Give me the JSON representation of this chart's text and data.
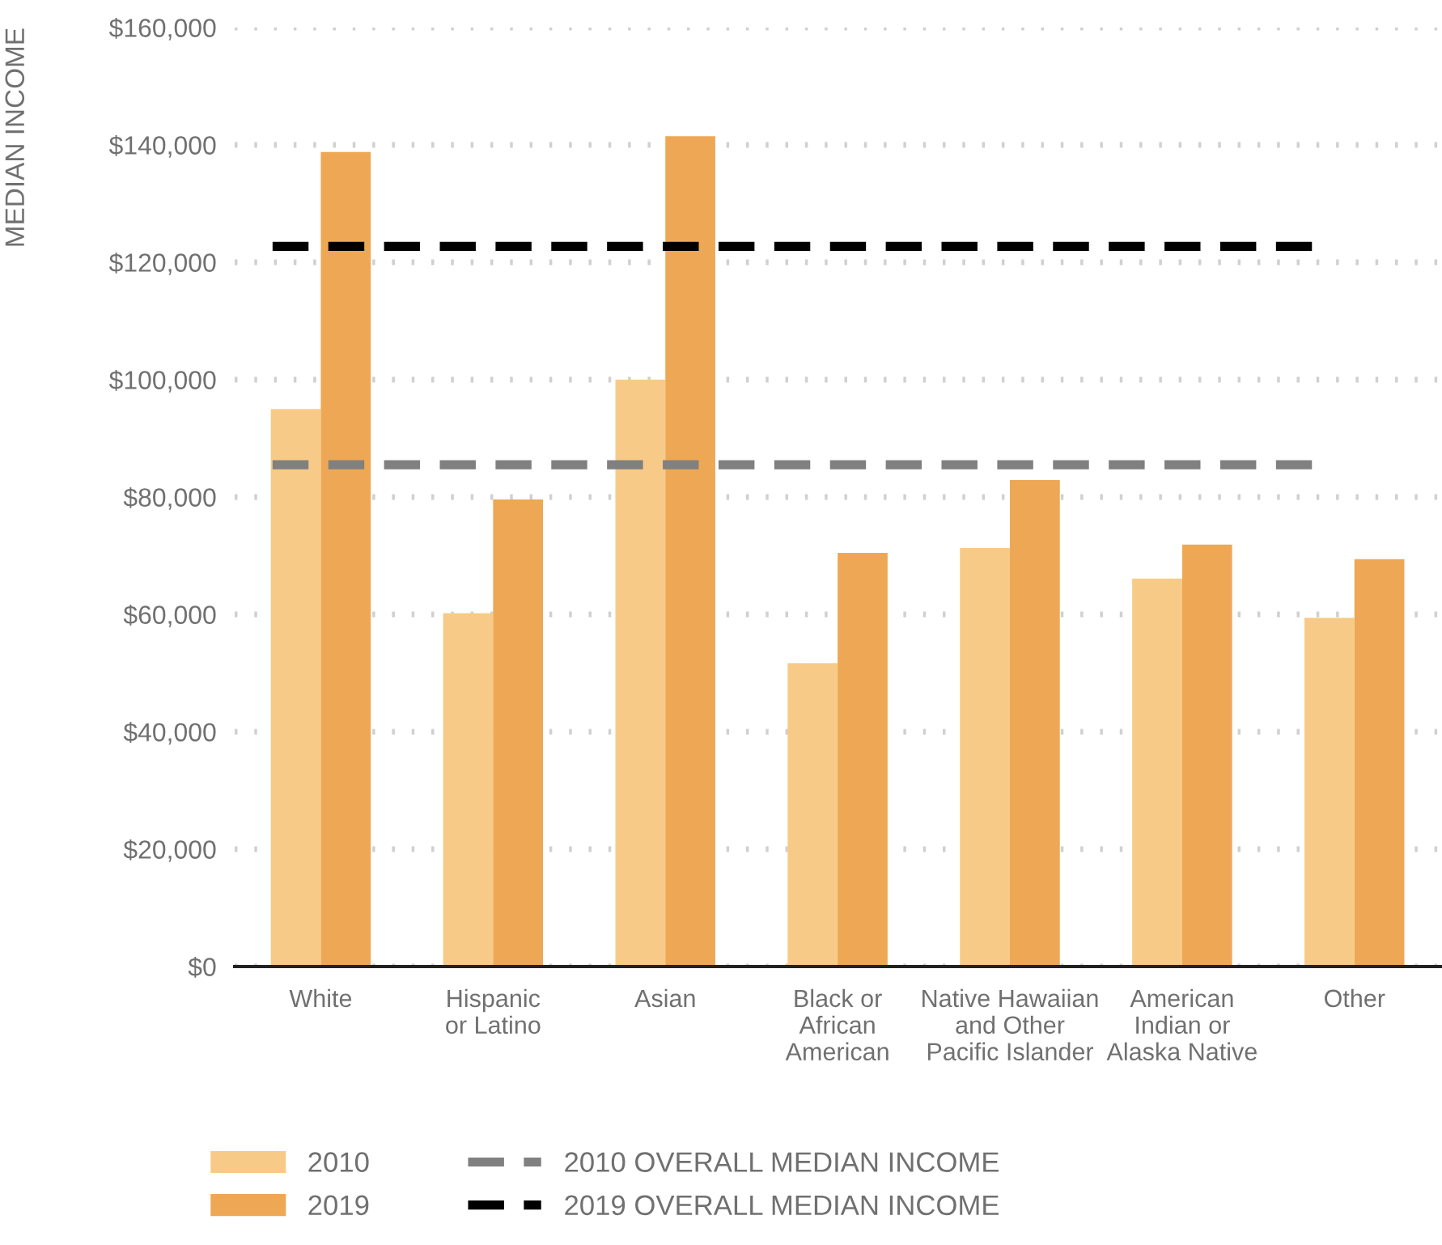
{
  "chart_data": {
    "type": "bar",
    "ylabel": "MEDIAN INCOME",
    "categories": [
      "White",
      "Hispanic\nor Latino",
      "Asian",
      "Black or\nAfrican\nAmerican",
      "Native Hawaiian\nand Other\nPacific Islander",
      "American\nIndian or\nAlaska Native",
      "Other"
    ],
    "series": [
      {
        "name": "2010",
        "color": "#f7cb87",
        "values": [
          95000,
          60200,
          100000,
          51700,
          71300,
          66100,
          59400
        ]
      },
      {
        "name": "2019",
        "color": "#eea855",
        "values": [
          138800,
          79600,
          141500,
          70500,
          82900,
          71900,
          69400
        ]
      }
    ],
    "ylim": [
      0,
      160000
    ],
    "yticks": [
      {
        "value": 0,
        "label": "$0"
      },
      {
        "value": 20000,
        "label": "$20,000"
      },
      {
        "value": 40000,
        "label": "$40,000"
      },
      {
        "value": 60000,
        "label": "$60,000"
      },
      {
        "value": 80000,
        "label": "$80,000"
      },
      {
        "value": 100000,
        "label": "$100,000"
      },
      {
        "value": 120000,
        "label": "$120,000"
      },
      {
        "value": 140000,
        "label": "$140,000"
      },
      {
        "value": 160000,
        "label": "$160,000"
      }
    ],
    "ref_lines": [
      {
        "axis": "y",
        "value": 85500,
        "label": "2010 OVERALL MEDIAN INCOME",
        "color": "#808080",
        "line_style": "dashed"
      },
      {
        "axis": "y",
        "value": 122700,
        "label": "2019 OVERALL MEDIAN INCOME",
        "color": "#000000",
        "line_style": "dashed"
      }
    ],
    "grid": "y",
    "legend": "bottom"
  }
}
